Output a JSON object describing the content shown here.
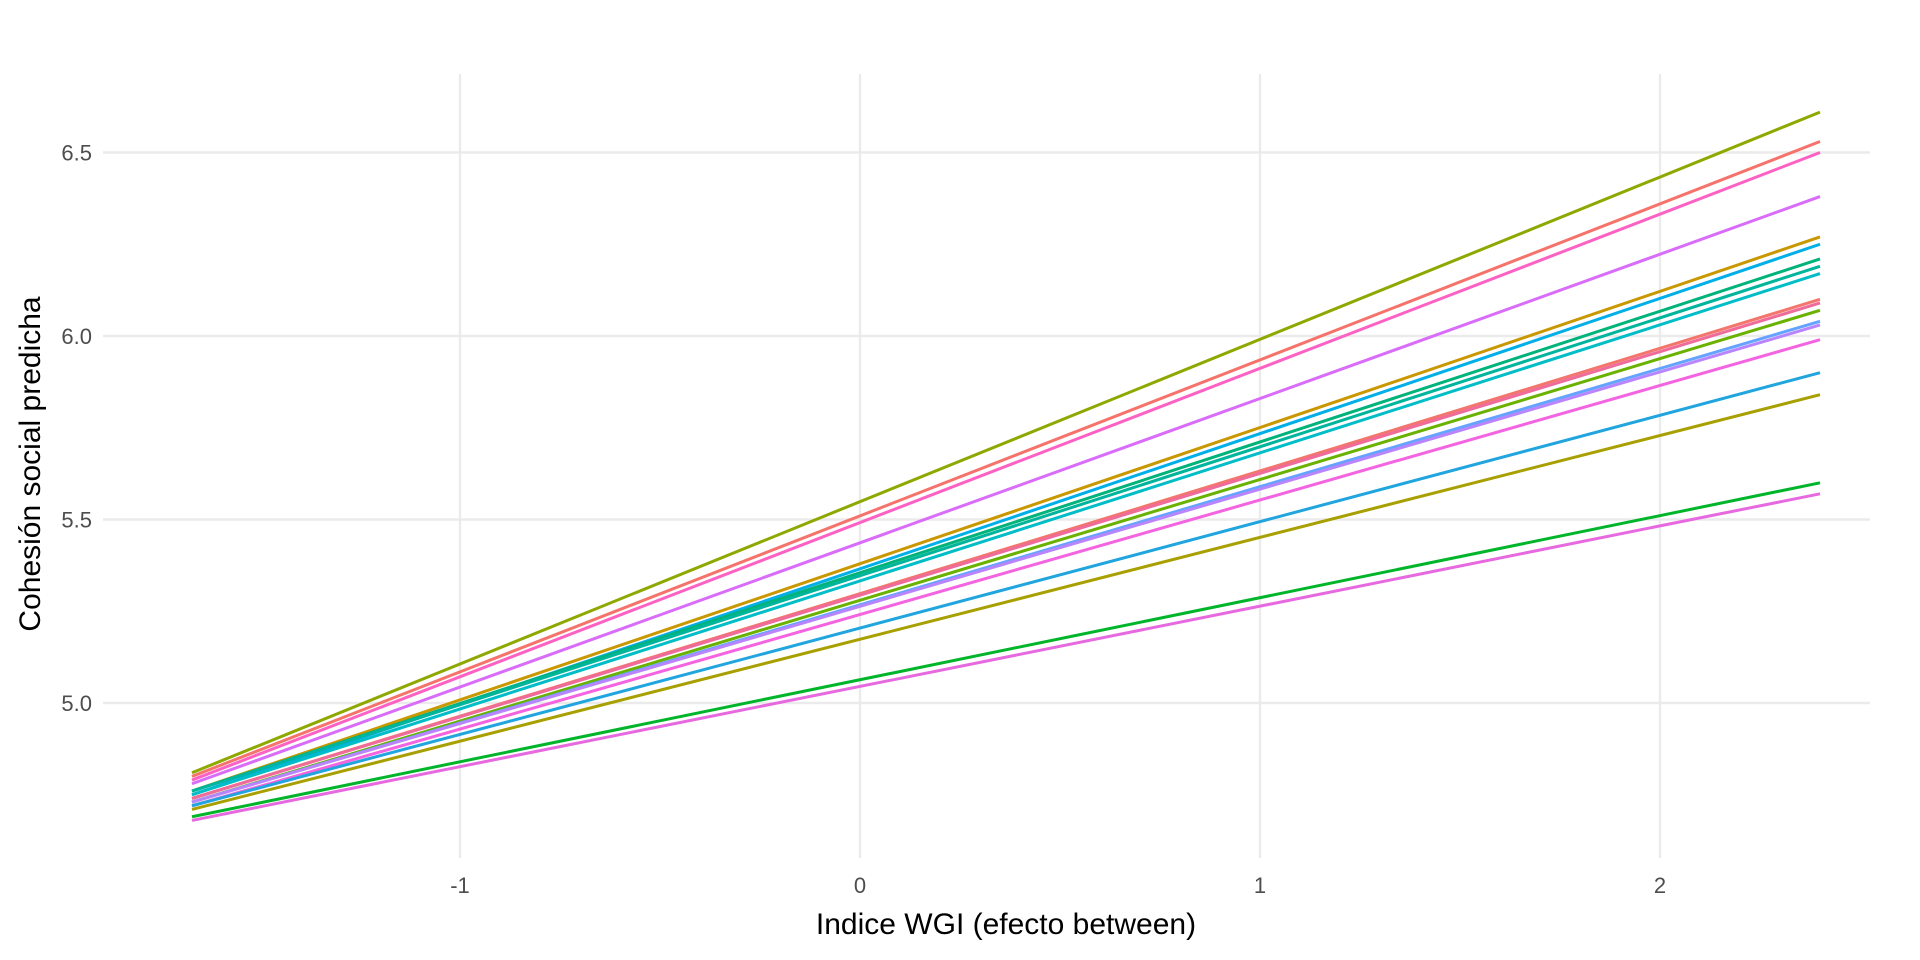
{
  "chart_data": {
    "type": "line",
    "title": "",
    "xlabel": "Indice WGI (efecto between)",
    "ylabel": "Cohesión social predicha",
    "xlim": [
      -1.67,
      2.62
    ],
    "ylim": [
      4.59,
      6.8
    ],
    "x_ticks": [
      -1,
      0,
      1,
      2
    ],
    "x_tick_labels": [
      "-1",
      "0",
      "1",
      "2"
    ],
    "y_ticks": [
      5.0,
      5.5,
      6.0,
      6.5
    ],
    "y_tick_labels": [
      "5.0",
      "5.5",
      "6.0",
      "6.5"
    ],
    "grid": true,
    "legend": "none",
    "x_range": [
      -1.67,
      2.4
    ],
    "series": [
      {
        "color": "#8fa800",
        "values": [
          4.81,
          6.61
        ]
      },
      {
        "color": "#f5736b",
        "values": [
          4.8,
          6.53
        ]
      },
      {
        "color": "#fd61c3",
        "values": [
          4.79,
          6.5
        ]
      },
      {
        "color": "#d96cf8",
        "values": [
          4.78,
          6.38
        ]
      },
      {
        "color": "#c99800",
        "values": [
          4.76,
          6.27
        ]
      },
      {
        "color": "#00aee8",
        "values": [
          4.75,
          6.25
        ]
      },
      {
        "color": "#00b37a",
        "values": [
          4.76,
          6.21
        ]
      },
      {
        "color": "#00b59c",
        "values": [
          4.76,
          6.19
        ]
      },
      {
        "color": "#00bdc7",
        "values": [
          4.75,
          6.17
        ]
      },
      {
        "color": "#f3766d",
        "values": [
          4.74,
          6.1
        ]
      },
      {
        "color": "#ee6b9a",
        "values": [
          4.74,
          6.09
        ]
      },
      {
        "color": "#6bb100",
        "values": [
          4.73,
          6.07
        ]
      },
      {
        "color": "#64a4ff",
        "values": [
          4.73,
          6.04
        ]
      },
      {
        "color": "#b985ff",
        "values": [
          4.73,
          6.03
        ]
      },
      {
        "color": "#f463e0",
        "values": [
          4.72,
          5.99
        ]
      },
      {
        "color": "#21a5de",
        "values": [
          4.72,
          5.9
        ]
      },
      {
        "color": "#a8a000",
        "values": [
          4.71,
          5.84
        ]
      },
      {
        "color": "#00b52a",
        "values": [
          4.69,
          5.6
        ]
      },
      {
        "color": "#e769e0",
        "values": [
          4.68,
          5.57
        ]
      }
    ]
  }
}
